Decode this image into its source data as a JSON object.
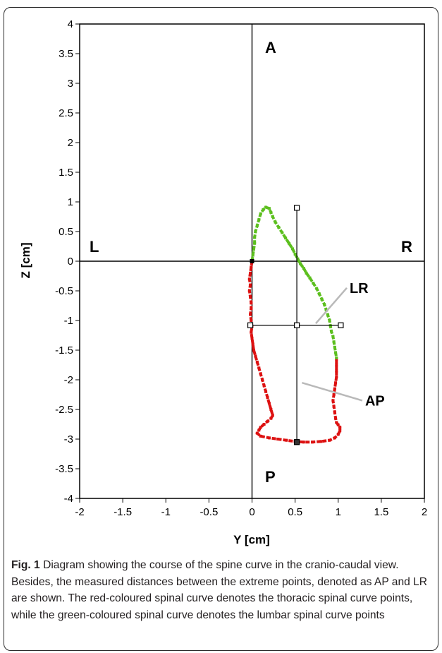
{
  "chart_data": {
    "type": "scatter",
    "xlabel": "Y [cm]",
    "ylabel": "Z [cm]",
    "xlim": [
      -2,
      2
    ],
    "ylim": [
      -4,
      4
    ],
    "x_ticks": [
      "-2",
      "-1.5",
      "-1",
      "-0.5",
      "0",
      "0.5",
      "1",
      "1.5",
      "2"
    ],
    "y_ticks": [
      "4",
      "3.5",
      "3",
      "2.5",
      "2",
      "1.5",
      "1",
      "0.5",
      "0",
      "-0.5",
      "-1",
      "-1.5",
      "-2",
      "-2.5",
      "-3",
      "-3.5",
      "-4"
    ],
    "grid": false,
    "quadrant_labels": {
      "A": "A",
      "P": "P",
      "L": "L",
      "R": "R"
    },
    "series": [
      {
        "color": "#dd1111",
        "points": [
          [
            0.0,
            0.0
          ],
          [
            -0.01,
            -0.1
          ],
          [
            -0.02,
            -0.2
          ],
          [
            -0.03,
            -0.3
          ],
          [
            -0.02,
            -0.4
          ],
          [
            -0.03,
            -0.5
          ],
          [
            -0.02,
            -0.6
          ],
          [
            -0.01,
            -0.7
          ],
          [
            -0.01,
            -0.8
          ],
          [
            -0.02,
            -0.9
          ],
          [
            -0.01,
            -1.0
          ],
          [
            0.0,
            -1.1
          ],
          [
            -0.01,
            -1.2
          ],
          [
            0.0,
            -1.3
          ],
          [
            0.01,
            -1.4
          ],
          [
            0.02,
            -1.5
          ],
          [
            0.04,
            -1.6
          ],
          [
            0.06,
            -1.7
          ],
          [
            0.08,
            -1.8
          ],
          [
            0.1,
            -1.9
          ],
          [
            0.12,
            -2.0
          ],
          [
            0.14,
            -2.1
          ],
          [
            0.16,
            -2.2
          ],
          [
            0.18,
            -2.3
          ],
          [
            0.2,
            -2.4
          ],
          [
            0.22,
            -2.5
          ],
          [
            0.24,
            -2.6
          ],
          [
            0.22,
            -2.65
          ],
          [
            0.18,
            -2.7
          ],
          [
            0.14,
            -2.75
          ],
          [
            0.1,
            -2.8
          ],
          [
            0.08,
            -2.85
          ],
          [
            0.06,
            -2.9
          ],
          [
            0.1,
            -2.95
          ],
          [
            0.2,
            -2.98
          ],
          [
            0.3,
            -3.0
          ],
          [
            0.4,
            -3.02
          ],
          [
            0.5,
            -3.04
          ],
          [
            0.6,
            -3.05
          ],
          [
            0.7,
            -3.05
          ],
          [
            0.8,
            -3.04
          ],
          [
            0.9,
            -3.02
          ],
          [
            0.96,
            -2.98
          ],
          [
            1.0,
            -2.92
          ],
          [
            1.02,
            -2.86
          ],
          [
            1.02,
            -2.8
          ],
          [
            1.0,
            -2.76
          ],
          [
            0.98,
            -2.72
          ],
          [
            0.97,
            -2.65
          ],
          [
            0.96,
            -2.55
          ],
          [
            0.95,
            -2.45
          ],
          [
            0.94,
            -2.35
          ],
          [
            0.95,
            -2.25
          ],
          [
            0.96,
            -2.15
          ],
          [
            0.97,
            -2.05
          ],
          [
            0.98,
            -1.95
          ],
          [
            0.98,
            -1.85
          ],
          [
            0.98,
            -1.75
          ],
          [
            0.98,
            -1.65
          ]
        ]
      },
      {
        "color": "#5cbf1e",
        "points": [
          [
            0.0,
            0.0
          ],
          [
            0.01,
            0.1
          ],
          [
            0.02,
            0.2
          ],
          [
            0.03,
            0.3
          ],
          [
            0.03,
            0.4
          ],
          [
            0.04,
            0.5
          ],
          [
            0.06,
            0.6
          ],
          [
            0.08,
            0.7
          ],
          [
            0.1,
            0.8
          ],
          [
            0.13,
            0.87
          ],
          [
            0.16,
            0.91
          ],
          [
            0.2,
            0.89
          ],
          [
            0.22,
            0.82
          ],
          [
            0.24,
            0.75
          ],
          [
            0.27,
            0.66
          ],
          [
            0.31,
            0.57
          ],
          [
            0.35,
            0.48
          ],
          [
            0.39,
            0.39
          ],
          [
            0.43,
            0.3
          ],
          [
            0.47,
            0.21
          ],
          [
            0.5,
            0.12
          ],
          [
            0.53,
            0.04
          ],
          [
            0.56,
            -0.04
          ],
          [
            0.6,
            -0.12
          ],
          [
            0.63,
            -0.2
          ],
          [
            0.67,
            -0.28
          ],
          [
            0.71,
            -0.37
          ],
          [
            0.75,
            -0.46
          ],
          [
            0.78,
            -0.55
          ],
          [
            0.81,
            -0.64
          ],
          [
            0.84,
            -0.73
          ],
          [
            0.86,
            -0.82
          ],
          [
            0.88,
            -0.91
          ],
          [
            0.9,
            -1.0
          ],
          [
            0.91,
            -1.09
          ],
          [
            0.92,
            -1.18
          ],
          [
            0.94,
            -1.27
          ],
          [
            0.95,
            -1.36
          ],
          [
            0.96,
            -1.45
          ],
          [
            0.97,
            -1.54
          ],
          [
            0.98,
            -1.63
          ]
        ]
      }
    ],
    "measurements": [
      {
        "name": "AP",
        "x1": 0.52,
        "y1": 0.9,
        "x2": 0.52,
        "y2": -3.05
      },
      {
        "name": "LR",
        "x1": -0.02,
        "y1": -1.08,
        "x2": 1.03,
        "y2": -1.08
      }
    ],
    "annotations": [
      {
        "text": "LR",
        "target": [
          0.74,
          -1.05
        ],
        "label": [
          1.1,
          -0.45
        ]
      },
      {
        "text": "AP",
        "target": [
          0.58,
          -2.05
        ],
        "label": [
          1.28,
          -2.35
        ]
      }
    ]
  },
  "caption": {
    "label": "Fig. 1",
    "text": " Diagram showing the course of the spine curve in the cranio-caudal view. Besides, the measured distances between the extreme points, denoted as AP and LR are shown. The red-coloured spinal curve denotes the thoracic spinal curve points, while the green-coloured spinal curve denotes the lumbar spinal curve points"
  }
}
